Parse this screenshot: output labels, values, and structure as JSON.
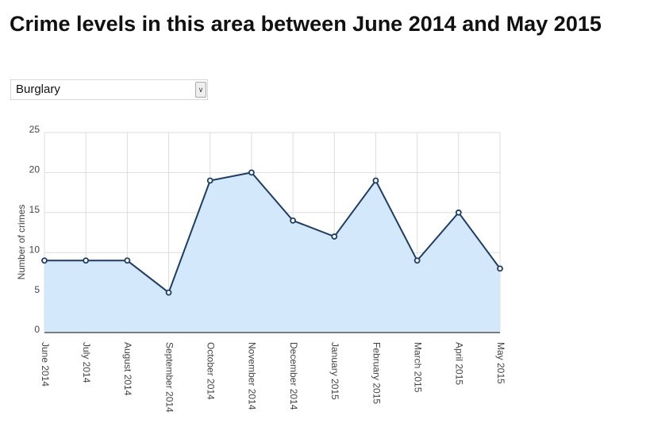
{
  "header": {
    "title": "Crime levels in this area between June 2014 and May 2015"
  },
  "filter": {
    "selected": "Burglary"
  },
  "chart_data": {
    "type": "area",
    "y_label": "Number of crimes",
    "categories": [
      "June 2014",
      "July 2014",
      "August 2014",
      "September 2014",
      "October 2014",
      "November 2014",
      "December 2014",
      "January 2015",
      "February 2015",
      "March 2015",
      "April 2015",
      "May 2015"
    ],
    "values": [
      9,
      9,
      9,
      5,
      19,
      20,
      14,
      12,
      19,
      9,
      15,
      8
    ],
    "color": "#1e3d66",
    "fill": "#d4e8fc",
    "ylim": [
      0,
      25
    ],
    "yticks": [
      0,
      5,
      10,
      15,
      20,
      25
    ],
    "grid": true
  }
}
